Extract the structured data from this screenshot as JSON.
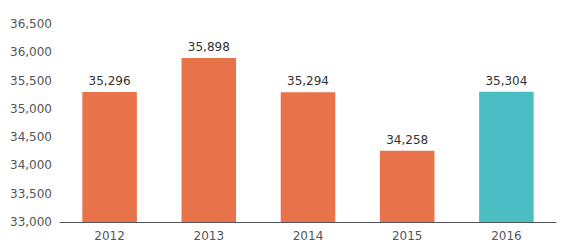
{
  "chart_data": {
    "type": "bar",
    "categories": [
      "2012",
      "2013",
      "2014",
      "2015",
      "2016"
    ],
    "values": [
      35296,
      35898,
      35294,
      34258,
      35304
    ],
    "value_labels": [
      "35,296",
      "35,898",
      "35,294",
      "34,258",
      "35,304"
    ],
    "colors": [
      "#E8724A",
      "#E8724A",
      "#E8724A",
      "#E8724A",
      "#4BBEC4"
    ],
    "ylim": [
      33000,
      36500
    ],
    "yticks": [
      {
        "value": 33000,
        "label": "33,000"
      },
      {
        "value": 33500,
        "label": "33,500"
      },
      {
        "value": 34000,
        "label": "34,000"
      },
      {
        "value": 34500,
        "label": "34,500"
      },
      {
        "value": 35000,
        "label": "35,000"
      },
      {
        "value": 35500,
        "label": "35,500"
      },
      {
        "value": 36000,
        "label": "36,000"
      },
      {
        "value": 36500,
        "label": "36,500"
      }
    ],
    "grid": false,
    "data_labels": true
  }
}
